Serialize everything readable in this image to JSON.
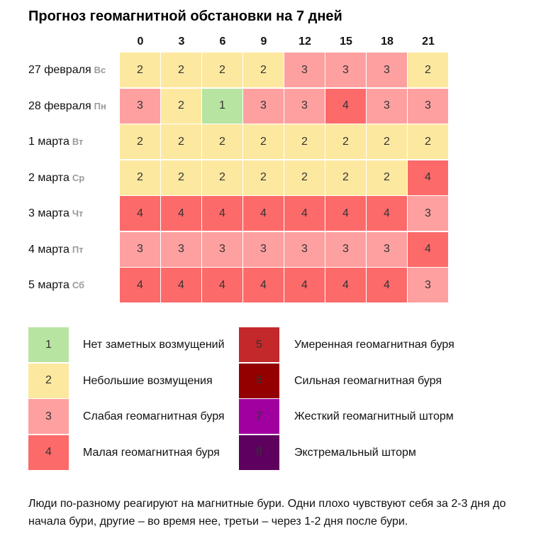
{
  "title": "Прогноз геомагнитной обстановки на 7 дней",
  "colors": {
    "1": "#b7e4a0",
    "2": "#fde89f",
    "3": "#fea0a0",
    "4": "#fd6a6a",
    "5": "#c3282a",
    "6": "#940000",
    "7": "#a000a0",
    "8": "#5e005e"
  },
  "chart_data": {
    "type": "heatmap",
    "title": "Прогноз геомагнитной обстановки на 7 дней",
    "hours": [
      "0",
      "3",
      "6",
      "9",
      "12",
      "15",
      "18",
      "21"
    ],
    "rows": [
      {
        "date": "27 февраля",
        "dow": "Вс",
        "values": [
          2,
          2,
          2,
          2,
          3,
          3,
          3,
          2
        ]
      },
      {
        "date": "28 февраля",
        "dow": "Пн",
        "values": [
          3,
          2,
          1,
          3,
          3,
          4,
          3,
          3
        ]
      },
      {
        "date": "1 марта",
        "dow": "Вт",
        "values": [
          2,
          2,
          2,
          2,
          2,
          2,
          2,
          2
        ]
      },
      {
        "date": "2 марта",
        "dow": "Ср",
        "values": [
          2,
          2,
          2,
          2,
          2,
          2,
          2,
          4
        ]
      },
      {
        "date": "3 марта",
        "dow": "Чт",
        "values": [
          4,
          4,
          4,
          4,
          4,
          4,
          4,
          3
        ]
      },
      {
        "date": "4 марта",
        "dow": "Пт",
        "values": [
          3,
          3,
          3,
          3,
          3,
          3,
          3,
          4
        ]
      },
      {
        "date": "5 марта",
        "dow": "Сб",
        "values": [
          4,
          4,
          4,
          4,
          4,
          4,
          4,
          3
        ]
      }
    ]
  },
  "legend": [
    {
      "level": "1",
      "label": "Нет заметных возмущений"
    },
    {
      "level": "2",
      "label": "Небольшие возмущения"
    },
    {
      "level": "3",
      "label": "Слабая геомагнитная буря"
    },
    {
      "level": "4",
      "label": "Малая геомагнитная буря"
    },
    {
      "level": "5",
      "label": "Умеренная геомагнитная буря"
    },
    {
      "level": "6",
      "label": "Сильная геомагнитная буря"
    },
    {
      "level": "7",
      "label": "Жесткий геомагнитный шторм"
    },
    {
      "level": "8",
      "label": "Экстремальный шторм"
    }
  ],
  "note": "Люди по-разному реагируют на магнитные бури. Одни плохо чувствуют себя за 2-3 дня до начала бури, другие – во время нее, третьи – через 1-2 дня после бури."
}
